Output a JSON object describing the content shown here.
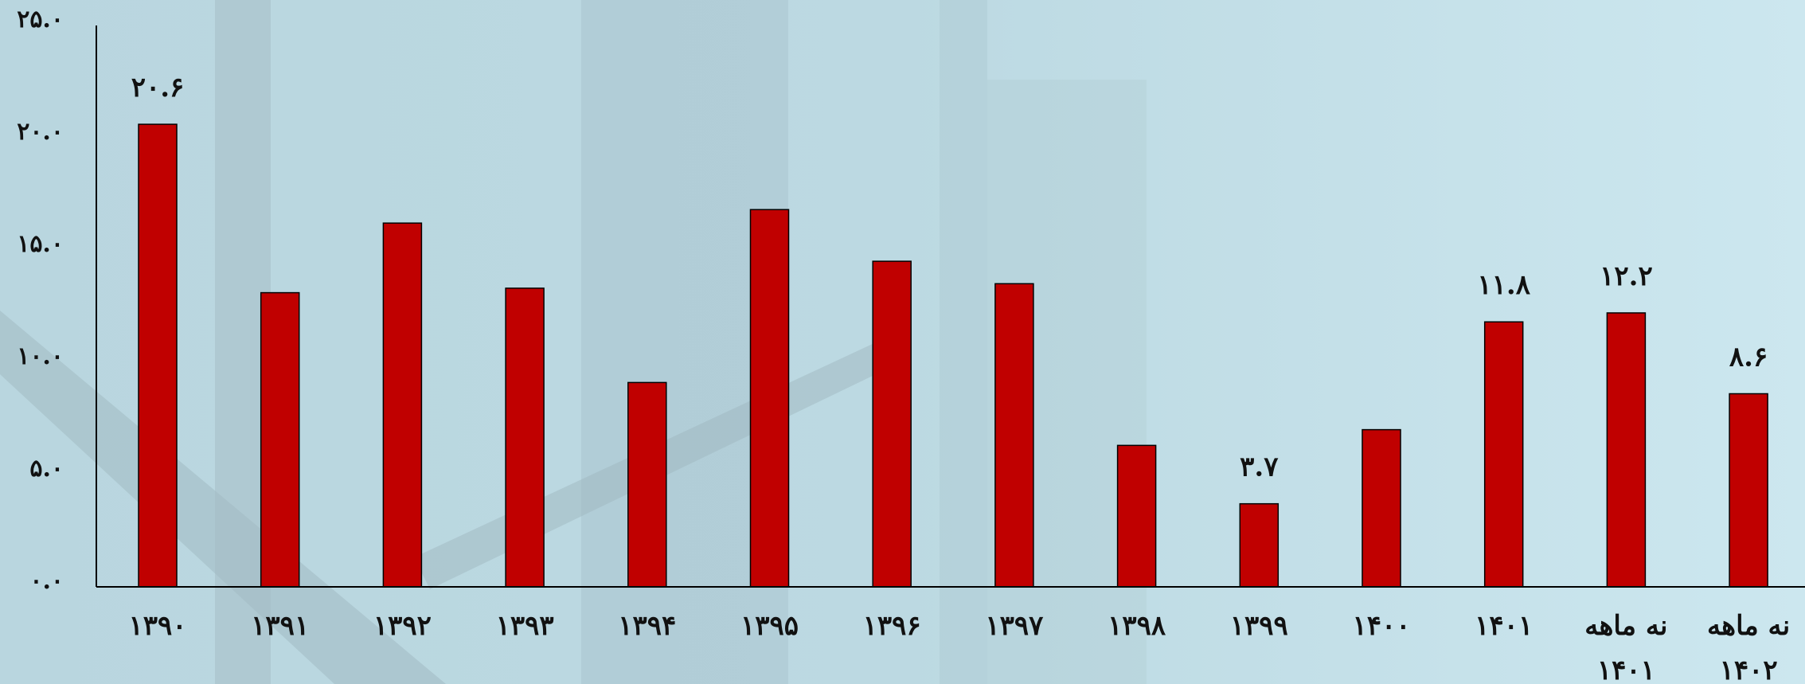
{
  "chart_data": {
    "type": "bar",
    "categories": [
      "۱۳۹۰",
      "۱۳۹۱",
      "۱۳۹۲",
      "۱۳۹۳",
      "۱۳۹۴",
      "۱۳۹۵",
      "۱۳۹۶",
      "۱۳۹۷",
      "۱۳۹۸",
      "۱۳۹۹",
      "۱۴۰۰",
      "۱۴۰۱",
      "نه ماهه ۱۴۰۱",
      "نه ماهه ۱۴۰۲"
    ],
    "values": [
      20.6,
      13.1,
      16.2,
      13.3,
      9.1,
      16.8,
      14.5,
      13.5,
      6.3,
      3.7,
      7.0,
      11.8,
      12.2,
      8.6
    ],
    "value_labels": [
      "۲۰.۶",
      null,
      null,
      null,
      null,
      null,
      null,
      null,
      null,
      "۳.۷",
      null,
      "۱۱.۸",
      "۱۲.۲",
      "۸.۶"
    ],
    "color": "#c00000",
    "ylim": [
      0,
      25
    ],
    "yticks": [
      {
        "value": 0,
        "label": "۰.۰"
      },
      {
        "value": 5,
        "label": "۵.۰"
      },
      {
        "value": 10,
        "label": "۱۰.۰"
      },
      {
        "value": 15,
        "label": "۱۵.۰"
      },
      {
        "value": 20,
        "label": "۲۰.۰"
      },
      {
        "value": 25,
        "label": "۲۵.۰"
      }
    ],
    "grid": false
  }
}
